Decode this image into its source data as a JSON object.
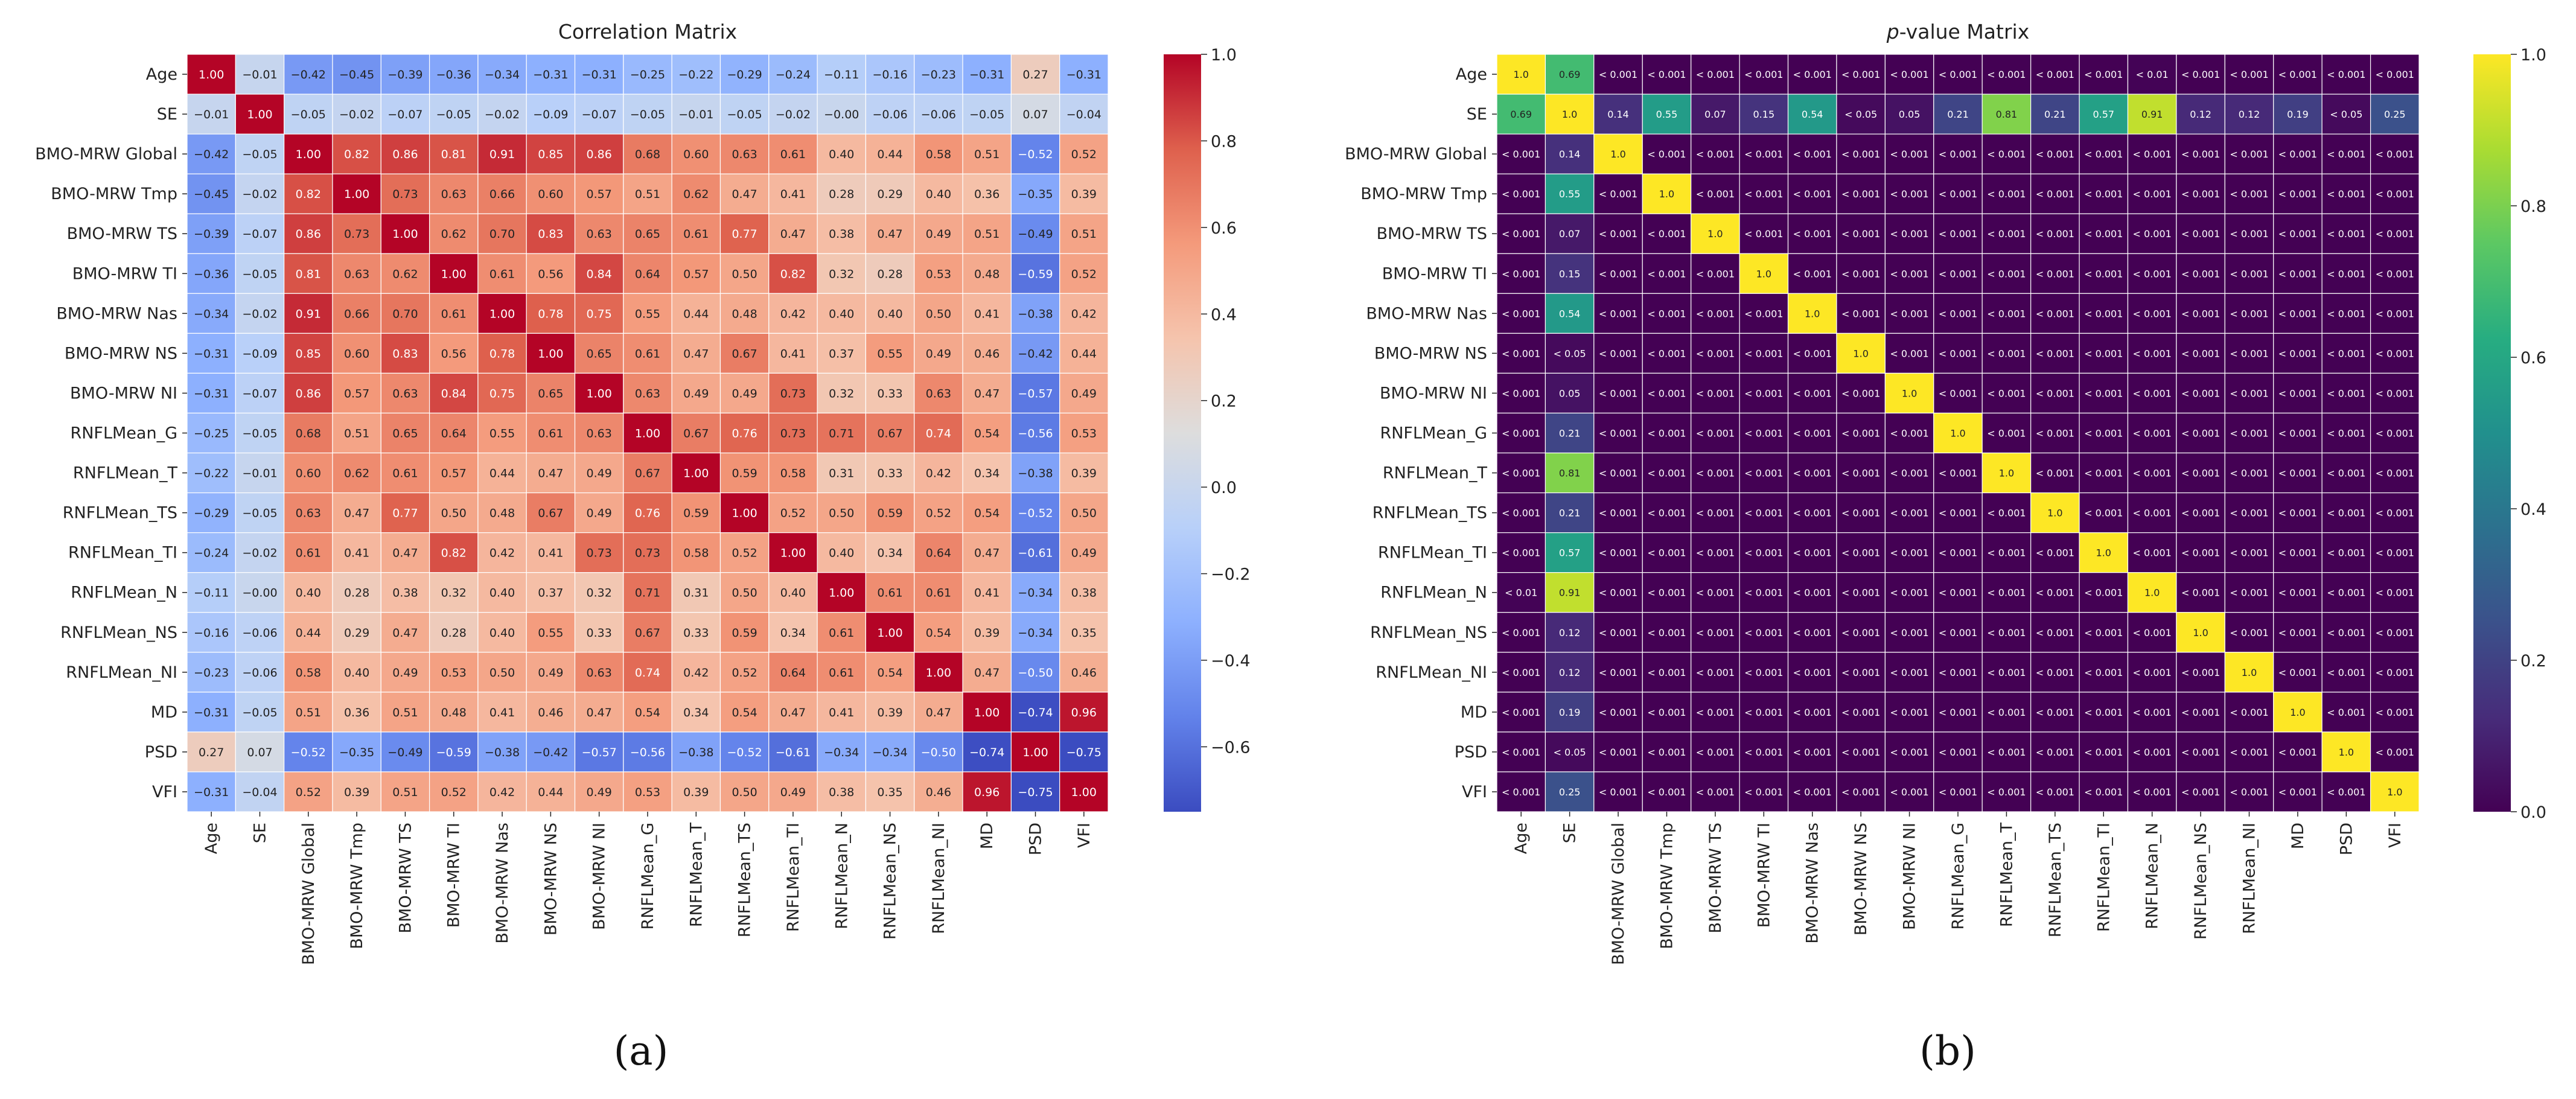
{
  "labels": [
    "Age",
    "SE",
    "BMO-MRW Global",
    "BMO-MRW Tmp",
    "BMO-MRW TS",
    "BMO-MRW TI",
    "BMO-MRW Nas",
    "BMO-MRW NS",
    "BMO-MRW NI",
    "RNFLMean_G",
    "RNFLMean_T",
    "RNFLMean_TS",
    "RNFLMean_TI",
    "RNFLMean_N",
    "RNFLMean_NS",
    "RNFLMean_NI",
    "MD",
    "PSD",
    "VFI"
  ],
  "panel_labels": {
    "a": "(a)",
    "b": "(b)"
  },
  "chart_data": [
    {
      "type": "heatmap",
      "title": "Correlation Matrix",
      "colormap": "coolwarm",
      "colorbar_range": [
        -0.75,
        1.0
      ],
      "colorbar_ticks": [
        "1.0",
        "0.8",
        "0.6",
        "0.4",
        "0.2",
        "0.0",
        "−0.2",
        "−0.4",
        "−0.6"
      ],
      "colorbar_tick_values": [
        1.0,
        0.8,
        0.6,
        0.4,
        0.2,
        0.0,
        -0.2,
        -0.4,
        -0.6
      ],
      "rows": [
        [
          "1.00",
          "−0.01",
          "−0.42",
          "−0.45",
          "−0.39",
          "−0.36",
          "−0.34",
          "−0.31",
          "−0.31",
          "−0.25",
          "−0.22",
          "−0.29",
          "−0.24",
          "−0.11",
          "−0.16",
          "−0.23",
          "−0.31",
          "0.27",
          "−0.31"
        ],
        [
          "−0.01",
          "1.00",
          "−0.05",
          "−0.02",
          "−0.07",
          "−0.05",
          "−0.02",
          "−0.09",
          "−0.07",
          "−0.05",
          "−0.01",
          "−0.05",
          "−0.02",
          "−0.00",
          "−0.06",
          "−0.06",
          "−0.05",
          "0.07",
          "−0.04"
        ],
        [
          "−0.42",
          "−0.05",
          "1.00",
          "0.82",
          "0.86",
          "0.81",
          "0.91",
          "0.85",
          "0.86",
          "0.68",
          "0.60",
          "0.63",
          "0.61",
          "0.40",
          "0.44",
          "0.58",
          "0.51",
          "−0.52",
          "0.52"
        ],
        [
          "−0.45",
          "−0.02",
          "0.82",
          "1.00",
          "0.73",
          "0.63",
          "0.66",
          "0.60",
          "0.57",
          "0.51",
          "0.62",
          "0.47",
          "0.41",
          "0.28",
          "0.29",
          "0.40",
          "0.36",
          "−0.35",
          "0.39"
        ],
        [
          "−0.39",
          "−0.07",
          "0.86",
          "0.73",
          "1.00",
          "0.62",
          "0.70",
          "0.83",
          "0.63",
          "0.65",
          "0.61",
          "0.77",
          "0.47",
          "0.38",
          "0.47",
          "0.49",
          "0.51",
          "−0.49",
          "0.51"
        ],
        [
          "−0.36",
          "−0.05",
          "0.81",
          "0.63",
          "0.62",
          "1.00",
          "0.61",
          "0.56",
          "0.84",
          "0.64",
          "0.57",
          "0.50",
          "0.82",
          "0.32",
          "0.28",
          "0.53",
          "0.48",
          "−0.59",
          "0.52"
        ],
        [
          "−0.34",
          "−0.02",
          "0.91",
          "0.66",
          "0.70",
          "0.61",
          "1.00",
          "0.78",
          "0.75",
          "0.55",
          "0.44",
          "0.48",
          "0.42",
          "0.40",
          "0.40",
          "0.50",
          "0.41",
          "−0.38",
          "0.42"
        ],
        [
          "−0.31",
          "−0.09",
          "0.85",
          "0.60",
          "0.83",
          "0.56",
          "0.78",
          "1.00",
          "0.65",
          "0.61",
          "0.47",
          "0.67",
          "0.41",
          "0.37",
          "0.55",
          "0.49",
          "0.46",
          "−0.42",
          "0.44"
        ],
        [
          "−0.31",
          "−0.07",
          "0.86",
          "0.57",
          "0.63",
          "0.84",
          "0.75",
          "0.65",
          "1.00",
          "0.63",
          "0.49",
          "0.49",
          "0.73",
          "0.32",
          "0.33",
          "0.63",
          "0.47",
          "−0.57",
          "0.49"
        ],
        [
          "−0.25",
          "−0.05",
          "0.68",
          "0.51",
          "0.65",
          "0.64",
          "0.55",
          "0.61",
          "0.63",
          "1.00",
          "0.67",
          "0.76",
          "0.73",
          "0.71",
          "0.67",
          "0.74",
          "0.54",
          "−0.56",
          "0.53"
        ],
        [
          "−0.22",
          "−0.01",
          "0.60",
          "0.62",
          "0.61",
          "0.57",
          "0.44",
          "0.47",
          "0.49",
          "0.67",
          "1.00",
          "0.59",
          "0.58",
          "0.31",
          "0.33",
          "0.42",
          "0.34",
          "−0.38",
          "0.39"
        ],
        [
          "−0.29",
          "−0.05",
          "0.63",
          "0.47",
          "0.77",
          "0.50",
          "0.48",
          "0.67",
          "0.49",
          "0.76",
          "0.59",
          "1.00",
          "0.52",
          "0.50",
          "0.59",
          "0.52",
          "0.54",
          "−0.52",
          "0.50"
        ],
        [
          "−0.24",
          "−0.02",
          "0.61",
          "0.41",
          "0.47",
          "0.82",
          "0.42",
          "0.41",
          "0.73",
          "0.73",
          "0.58",
          "0.52",
          "1.00",
          "0.40",
          "0.34",
          "0.64",
          "0.47",
          "−0.61",
          "0.49"
        ],
        [
          "−0.11",
          "−0.00",
          "0.40",
          "0.28",
          "0.38",
          "0.32",
          "0.40",
          "0.37",
          "0.32",
          "0.71",
          "0.31",
          "0.50",
          "0.40",
          "1.00",
          "0.61",
          "0.61",
          "0.41",
          "−0.34",
          "0.38"
        ],
        [
          "−0.16",
          "−0.06",
          "0.44",
          "0.29",
          "0.47",
          "0.28",
          "0.40",
          "0.55",
          "0.33",
          "0.67",
          "0.33",
          "0.59",
          "0.34",
          "0.61",
          "1.00",
          "0.54",
          "0.39",
          "−0.34",
          "0.35"
        ],
        [
          "−0.23",
          "−0.06",
          "0.58",
          "0.40",
          "0.49",
          "0.53",
          "0.50",
          "0.49",
          "0.63",
          "0.74",
          "0.42",
          "0.52",
          "0.64",
          "0.61",
          "0.54",
          "1.00",
          "0.47",
          "−0.50",
          "0.46"
        ],
        [
          "−0.31",
          "−0.05",
          "0.51",
          "0.36",
          "0.51",
          "0.48",
          "0.41",
          "0.46",
          "0.47",
          "0.54",
          "0.34",
          "0.54",
          "0.47",
          "0.41",
          "0.39",
          "0.47",
          "1.00",
          "−0.74",
          "0.96"
        ],
        [
          "0.27",
          "0.07",
          "−0.52",
          "−0.35",
          "−0.49",
          "−0.59",
          "−0.38",
          "−0.42",
          "−0.57",
          "−0.56",
          "−0.38",
          "−0.52",
          "−0.61",
          "−0.34",
          "−0.34",
          "−0.50",
          "−0.74",
          "1.00",
          "−0.75"
        ],
        [
          "−0.31",
          "−0.04",
          "0.52",
          "0.39",
          "0.51",
          "0.52",
          "0.42",
          "0.44",
          "0.49",
          "0.53",
          "0.39",
          "0.50",
          "0.49",
          "0.38",
          "0.35",
          "0.46",
          "0.96",
          "−0.75",
          "1.00"
        ]
      ]
    },
    {
      "type": "heatmap",
      "title_italic": "p",
      "title_rest": "-value Matrix",
      "colormap": "viridis",
      "colorbar_range": [
        0.0,
        1.0
      ],
      "colorbar_ticks": [
        "1.0",
        "0.8",
        "0.6",
        "0.4",
        "0.2",
        "0.0"
      ],
      "colorbar_tick_values": [
        1.0,
        0.8,
        0.6,
        0.4,
        0.2,
        0.0
      ],
      "rows": [
        [
          "1.0",
          "0.69",
          "< 0.001",
          "< 0.001",
          "< 0.001",
          "< 0.001",
          "< 0.001",
          "< 0.001",
          "< 0.001",
          "< 0.001",
          "< 0.001",
          "< 0.001",
          "< 0.001",
          "< 0.01",
          "< 0.001",
          "< 0.001",
          "< 0.001",
          "< 0.001",
          "< 0.001"
        ],
        [
          "0.69",
          "1.0",
          "0.14",
          "0.55",
          "0.07",
          "0.15",
          "0.54",
          "< 0.05",
          "0.05",
          "0.21",
          "0.81",
          "0.21",
          "0.57",
          "0.91",
          "0.12",
          "0.12",
          "0.19",
          "< 0.05",
          "0.25"
        ],
        [
          "< 0.001",
          "0.14",
          "1.0",
          "< 0.001",
          "< 0.001",
          "< 0.001",
          "< 0.001",
          "< 0.001",
          "< 0.001",
          "< 0.001",
          "< 0.001",
          "< 0.001",
          "< 0.001",
          "< 0.001",
          "< 0.001",
          "< 0.001",
          "< 0.001",
          "< 0.001",
          "< 0.001"
        ],
        [
          "< 0.001",
          "0.55",
          "< 0.001",
          "1.0",
          "< 0.001",
          "< 0.001",
          "< 0.001",
          "< 0.001",
          "< 0.001",
          "< 0.001",
          "< 0.001",
          "< 0.001",
          "< 0.001",
          "< 0.001",
          "< 0.001",
          "< 0.001",
          "< 0.001",
          "< 0.001",
          "< 0.001"
        ],
        [
          "< 0.001",
          "0.07",
          "< 0.001",
          "< 0.001",
          "1.0",
          "< 0.001",
          "< 0.001",
          "< 0.001",
          "< 0.001",
          "< 0.001",
          "< 0.001",
          "< 0.001",
          "< 0.001",
          "< 0.001",
          "< 0.001",
          "< 0.001",
          "< 0.001",
          "< 0.001",
          "< 0.001"
        ],
        [
          "< 0.001",
          "0.15",
          "< 0.001",
          "< 0.001",
          "< 0.001",
          "1.0",
          "< 0.001",
          "< 0.001",
          "< 0.001",
          "< 0.001",
          "< 0.001",
          "< 0.001",
          "< 0.001",
          "< 0.001",
          "< 0.001",
          "< 0.001",
          "< 0.001",
          "< 0.001",
          "< 0.001"
        ],
        [
          "< 0.001",
          "0.54",
          "< 0.001",
          "< 0.001",
          "< 0.001",
          "< 0.001",
          "1.0",
          "< 0.001",
          "< 0.001",
          "< 0.001",
          "< 0.001",
          "< 0.001",
          "< 0.001",
          "< 0.001",
          "< 0.001",
          "< 0.001",
          "< 0.001",
          "< 0.001",
          "< 0.001"
        ],
        [
          "< 0.001",
          "< 0.05",
          "< 0.001",
          "< 0.001",
          "< 0.001",
          "< 0.001",
          "< 0.001",
          "1.0",
          "< 0.001",
          "< 0.001",
          "< 0.001",
          "< 0.001",
          "< 0.001",
          "< 0.001",
          "< 0.001",
          "< 0.001",
          "< 0.001",
          "< 0.001",
          "< 0.001"
        ],
        [
          "< 0.001",
          "0.05",
          "< 0.001",
          "< 0.001",
          "< 0.001",
          "< 0.001",
          "< 0.001",
          "< 0.001",
          "1.0",
          "< 0.001",
          "< 0.001",
          "< 0.001",
          "< 0.001",
          "< 0.001",
          "< 0.001",
          "< 0.001",
          "< 0.001",
          "< 0.001",
          "< 0.001"
        ],
        [
          "< 0.001",
          "0.21",
          "< 0.001",
          "< 0.001",
          "< 0.001",
          "< 0.001",
          "< 0.001",
          "< 0.001",
          "< 0.001",
          "1.0",
          "< 0.001",
          "< 0.001",
          "< 0.001",
          "< 0.001",
          "< 0.001",
          "< 0.001",
          "< 0.001",
          "< 0.001",
          "< 0.001"
        ],
        [
          "< 0.001",
          "0.81",
          "< 0.001",
          "< 0.001",
          "< 0.001",
          "< 0.001",
          "< 0.001",
          "< 0.001",
          "< 0.001",
          "< 0.001",
          "1.0",
          "< 0.001",
          "< 0.001",
          "< 0.001",
          "< 0.001",
          "< 0.001",
          "< 0.001",
          "< 0.001",
          "< 0.001"
        ],
        [
          "< 0.001",
          "0.21",
          "< 0.001",
          "< 0.001",
          "< 0.001",
          "< 0.001",
          "< 0.001",
          "< 0.001",
          "< 0.001",
          "< 0.001",
          "< 0.001",
          "1.0",
          "< 0.001",
          "< 0.001",
          "< 0.001",
          "< 0.001",
          "< 0.001",
          "< 0.001",
          "< 0.001"
        ],
        [
          "< 0.001",
          "0.57",
          "< 0.001",
          "< 0.001",
          "< 0.001",
          "< 0.001",
          "< 0.001",
          "< 0.001",
          "< 0.001",
          "< 0.001",
          "< 0.001",
          "< 0.001",
          "1.0",
          "< 0.001",
          "< 0.001",
          "< 0.001",
          "< 0.001",
          "< 0.001",
          "< 0.001"
        ],
        [
          "< 0.01",
          "0.91",
          "< 0.001",
          "< 0.001",
          "< 0.001",
          "< 0.001",
          "< 0.001",
          "< 0.001",
          "< 0.001",
          "< 0.001",
          "< 0.001",
          "< 0.001",
          "< 0.001",
          "1.0",
          "< 0.001",
          "< 0.001",
          "< 0.001",
          "< 0.001",
          "< 0.001"
        ],
        [
          "< 0.001",
          "0.12",
          "< 0.001",
          "< 0.001",
          "< 0.001",
          "< 0.001",
          "< 0.001",
          "< 0.001",
          "< 0.001",
          "< 0.001",
          "< 0.001",
          "< 0.001",
          "< 0.001",
          "< 0.001",
          "1.0",
          "< 0.001",
          "< 0.001",
          "< 0.001",
          "< 0.001"
        ],
        [
          "< 0.001",
          "0.12",
          "< 0.001",
          "< 0.001",
          "< 0.001",
          "< 0.001",
          "< 0.001",
          "< 0.001",
          "< 0.001",
          "< 0.001",
          "< 0.001",
          "< 0.001",
          "< 0.001",
          "< 0.001",
          "< 0.001",
          "1.0",
          "< 0.001",
          "< 0.001",
          "< 0.001"
        ],
        [
          "< 0.001",
          "0.19",
          "< 0.001",
          "< 0.001",
          "< 0.001",
          "< 0.001",
          "< 0.001",
          "< 0.001",
          "< 0.001",
          "< 0.001",
          "< 0.001",
          "< 0.001",
          "< 0.001",
          "< 0.001",
          "< 0.001",
          "< 0.001",
          "1.0",
          "< 0.001",
          "< 0.001"
        ],
        [
          "< 0.001",
          "< 0.05",
          "< 0.001",
          "< 0.001",
          "< 0.001",
          "< 0.001",
          "< 0.001",
          "< 0.001",
          "< 0.001",
          "< 0.001",
          "< 0.001",
          "< 0.001",
          "< 0.001",
          "< 0.001",
          "< 0.001",
          "< 0.001",
          "< 0.001",
          "1.0",
          "< 0.001"
        ],
        [
          "< 0.001",
          "0.25",
          "< 0.001",
          "< 0.001",
          "< 0.001",
          "< 0.001",
          "< 0.001",
          "< 0.001",
          "< 0.001",
          "< 0.001",
          "< 0.001",
          "< 0.001",
          "< 0.001",
          "< 0.001",
          "< 0.001",
          "< 0.001",
          "< 0.001",
          "< 0.001",
          "1.0"
        ]
      ]
    }
  ]
}
